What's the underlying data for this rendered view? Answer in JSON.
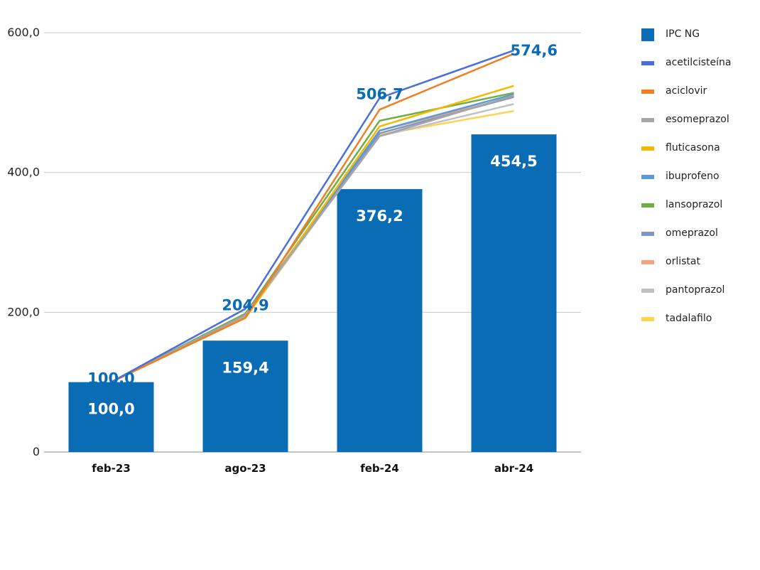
{
  "chart_data": {
    "type": "bar",
    "categories": [
      "feb-23",
      "ago-23",
      "feb-24",
      "abr-24"
    ],
    "ylim": [
      0,
      600
    ],
    "yticks": [
      {
        "value": 0,
        "label": "0"
      },
      {
        "value": 200,
        "label": "200,0"
      },
      {
        "value": 400,
        "label": "400,0"
      },
      {
        "value": 600,
        "label": "600,0"
      }
    ],
    "grid": true,
    "legend_position": "right",
    "bar_series": {
      "name": "IPC NG",
      "color": "#0a6cb5",
      "values": [
        100.0,
        159.4,
        376.2,
        454.5
      ],
      "labels": [
        "100,0",
        "159,4",
        "376,2",
        "454,5"
      ]
    },
    "line_series": [
      {
        "name": "acetilcisteína",
        "color": "#4a6fdc",
        "values": [
          100,
          204.9,
          506.7,
          574.6
        ],
        "labels": [
          "100,0",
          "204,9",
          "506,7",
          "574,6"
        ]
      },
      {
        "name": "aciclovir",
        "color": "#f07f24",
        "values": [
          100,
          192,
          490,
          570
        ]
      },
      {
        "name": "esomeprazol",
        "color": "#a5a5a5",
        "values": [
          100,
          196,
          452,
          510
        ]
      },
      {
        "name": "fluticasona",
        "color": "#f5b800",
        "values": [
          100,
          192,
          466,
          524
        ]
      },
      {
        "name": "ibuprofeno",
        "color": "#5b9bd5",
        "values": [
          100,
          196,
          460,
          512
        ]
      },
      {
        "name": "lansoprazol",
        "color": "#70ad47",
        "values": [
          100,
          198,
          474,
          514
        ]
      },
      {
        "name": "omeprazol",
        "color": "#7f96c9",
        "values": [
          100,
          196,
          456,
          508
        ]
      },
      {
        "name": "orlistat",
        "color": "#f4a27a",
        "values": [
          100,
          194,
          460,
          508
        ]
      },
      {
        "name": "pantoprazol",
        "color": "#c0c0c0",
        "values": [
          100,
          194,
          452,
          498
        ]
      },
      {
        "name": "tadalafilo",
        "color": "#ffd34d",
        "values": [
          100,
          192,
          454,
          488
        ]
      }
    ]
  }
}
